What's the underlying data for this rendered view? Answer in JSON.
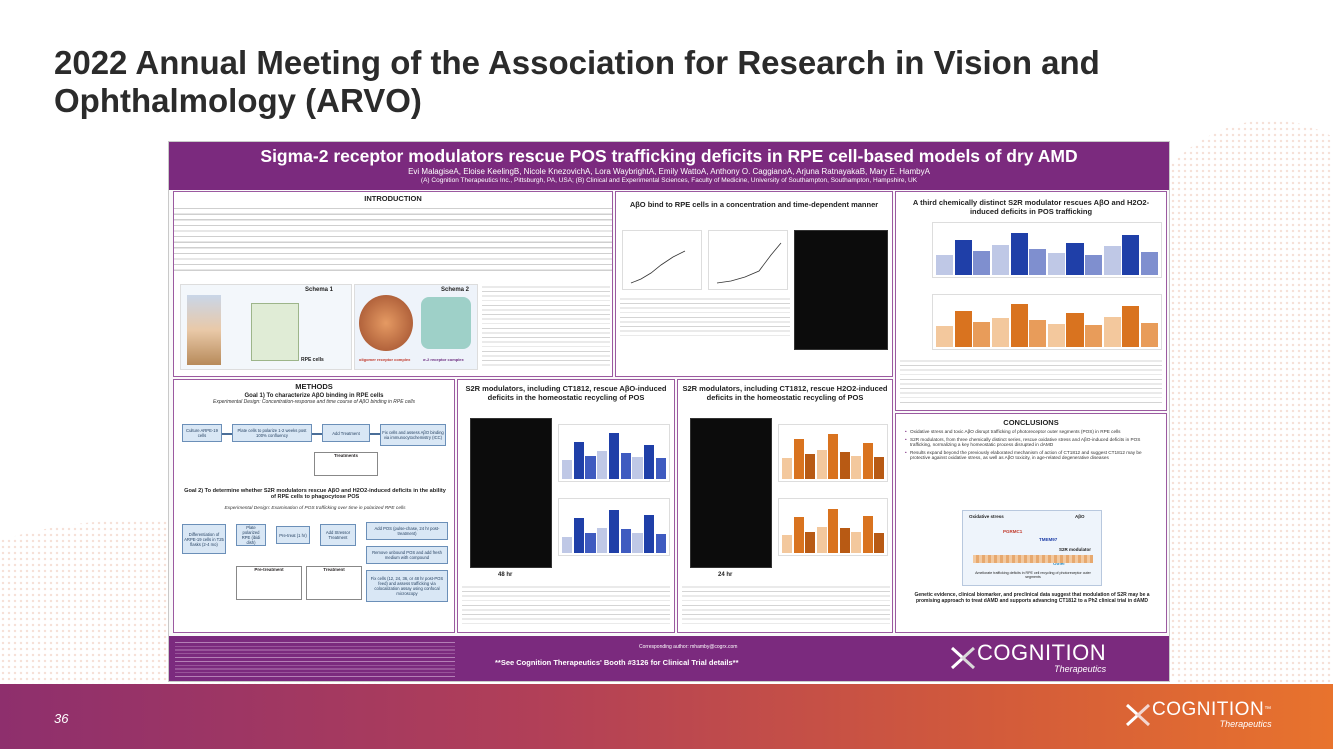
{
  "slide": {
    "title": "2022 Annual Meeting of the Association for Research in Vision and Ophthalmology (ARVO)",
    "page_number": "36"
  },
  "poster": {
    "title": "Sigma-2 receptor modulators rescue POS trafficking deficits in RPE cell-based models of dry AMD",
    "authors": "Evi MalagiseA, Eloise KeelingB, Nicole KnezovichA, Lora WaybrightA, Emily WattoA, Anthony O. CaggianoA, Arjuna RatnayakaB, Mary E. HambyA",
    "affiliations": "(A) Cognition Therapeutics Inc., Pittsburgh, PA, USA; (B) Clinical and Experimental Sciences, Faculty of Medicine, University of Southampton, Southampton, Hampshire, UK",
    "sections": {
      "introduction": "INTRODUCTION",
      "methods": "METHODS",
      "abo_bind": "AβO bind to RPE cells in a concentration and time-dependent manner",
      "third_modulator": "A third chemically distinct S2R modulator rescues AβO and H2O2-induced deficits in POS trafficking",
      "s2r_abo": "S2R modulators, including CT1812, rescue AβO-induced deficits in the homeostatic recycling of POS",
      "s2r_h2o2": "S2R modulators, including CT1812, rescue H2O2-induced deficits in the homeostatic recycling of POS",
      "conclusions": "CONCLUSIONS"
    },
    "methods": {
      "goal1": "Goal 1) To characterize AβO binding in RPE cells",
      "design1": "Experimental Design: Concentration-response and time course of AβO binding in RPE cells",
      "goal2": "Goal 2) To determine whether S2R modulators rescue AβO and H2O2-induced deficits in the ability of RPE cells to phagocytose POS",
      "design2": "Experimental Design: Examination of POS trafficking over time in polarized RPE cells",
      "boxes1": [
        "Culture ARPE-19 cells",
        "Plate cells to polarize 1-2 weeks post 100% confluency",
        "Add Treatment",
        "Fix cells and assess AβO binding via immunocytochemistry (ICC)"
      ],
      "boxes2": [
        "Differentiation of ARPE-19 cells in T25 flasks (2-4 mo)",
        "Plate polarized RPE (ibidi dish)",
        "Pre-treat (1 hr)",
        "Add Stressor Treatment",
        "Add POS (pulse-chase, 24 hr post-treatment)",
        "Remove unbound POS and add fresh medium with compound",
        "Fix cells (12, 24, 36, or 48 hr post-POS feed) and assess trafficking via colocalization assay using confocal microscopy"
      ],
      "treatments_label": "Treatments",
      "pretreatment_label": "Pre-treatment",
      "treatment_label": "Treatment"
    },
    "conclusions": [
      "Oxidative stress and toxic AβO disrupt trafficking of photoreceptor outer segments (POS) in RPE cells",
      "S2R modulators, from three chemically distinct series, rescue oxidative stress and AβO-induced deficits in POS trafficking, normalizing a key homeostatic process disrupted in dAMD",
      "Results expand beyond the previously elaborated mechanism of action of CT1812 and suggest CT1812 may be protective against oxidative stress, as well as AβO toxicity, in age-related degenerative diseases"
    ],
    "diagram": {
      "oxidative_stress": "Oxidative stress",
      "abo": "AβO",
      "pgrmc1": "PGRMC1",
      "tmem97": "TMEM97",
      "s2r_modulator": "S2R modulator",
      "other": "Other",
      "caption": "Ameliorate trafficking deficits in RPE cell recycling of photoreceptor outer segments"
    },
    "genetic_evidence": "Genetic evidence, clinical biomarker, and preclinical data suggest that modulation of S2R may be a promising approach to treat dAMD and supports advancing CT1812 to a Ph2 clinical trial in dAMD",
    "corresponding_author": "Corresponding author: mhamby@cogrx.com",
    "booth": "**See Cognition Therapeutics' Booth #3126 for Clinical Trial details**",
    "logo_word": "COGNITION",
    "logo_sub": "Therapeutics",
    "schema_labels": {
      "schema1": "Schema 1",
      "schema2": "Schema 2",
      "rpe_cells": "RPE cells",
      "oligomer": "oligomer receptor complex",
      "s2r_complex": "σ-2 receptor complex",
      "time_hr": "Time (hr)",
      "hr48": "48 hr",
      "hr24": "24 hr"
    }
  },
  "footer": {
    "logo_word": "COGNITION",
    "logo_sub": "Therapeutics",
    "tm": "™"
  },
  "colors": {
    "poster_purple": "#7b2a7e",
    "footer_start": "#8e2f6d",
    "footer_end": "#e8732d",
    "bar_blue": "#1f3fa8",
    "bar_orange": "#d9731f"
  }
}
